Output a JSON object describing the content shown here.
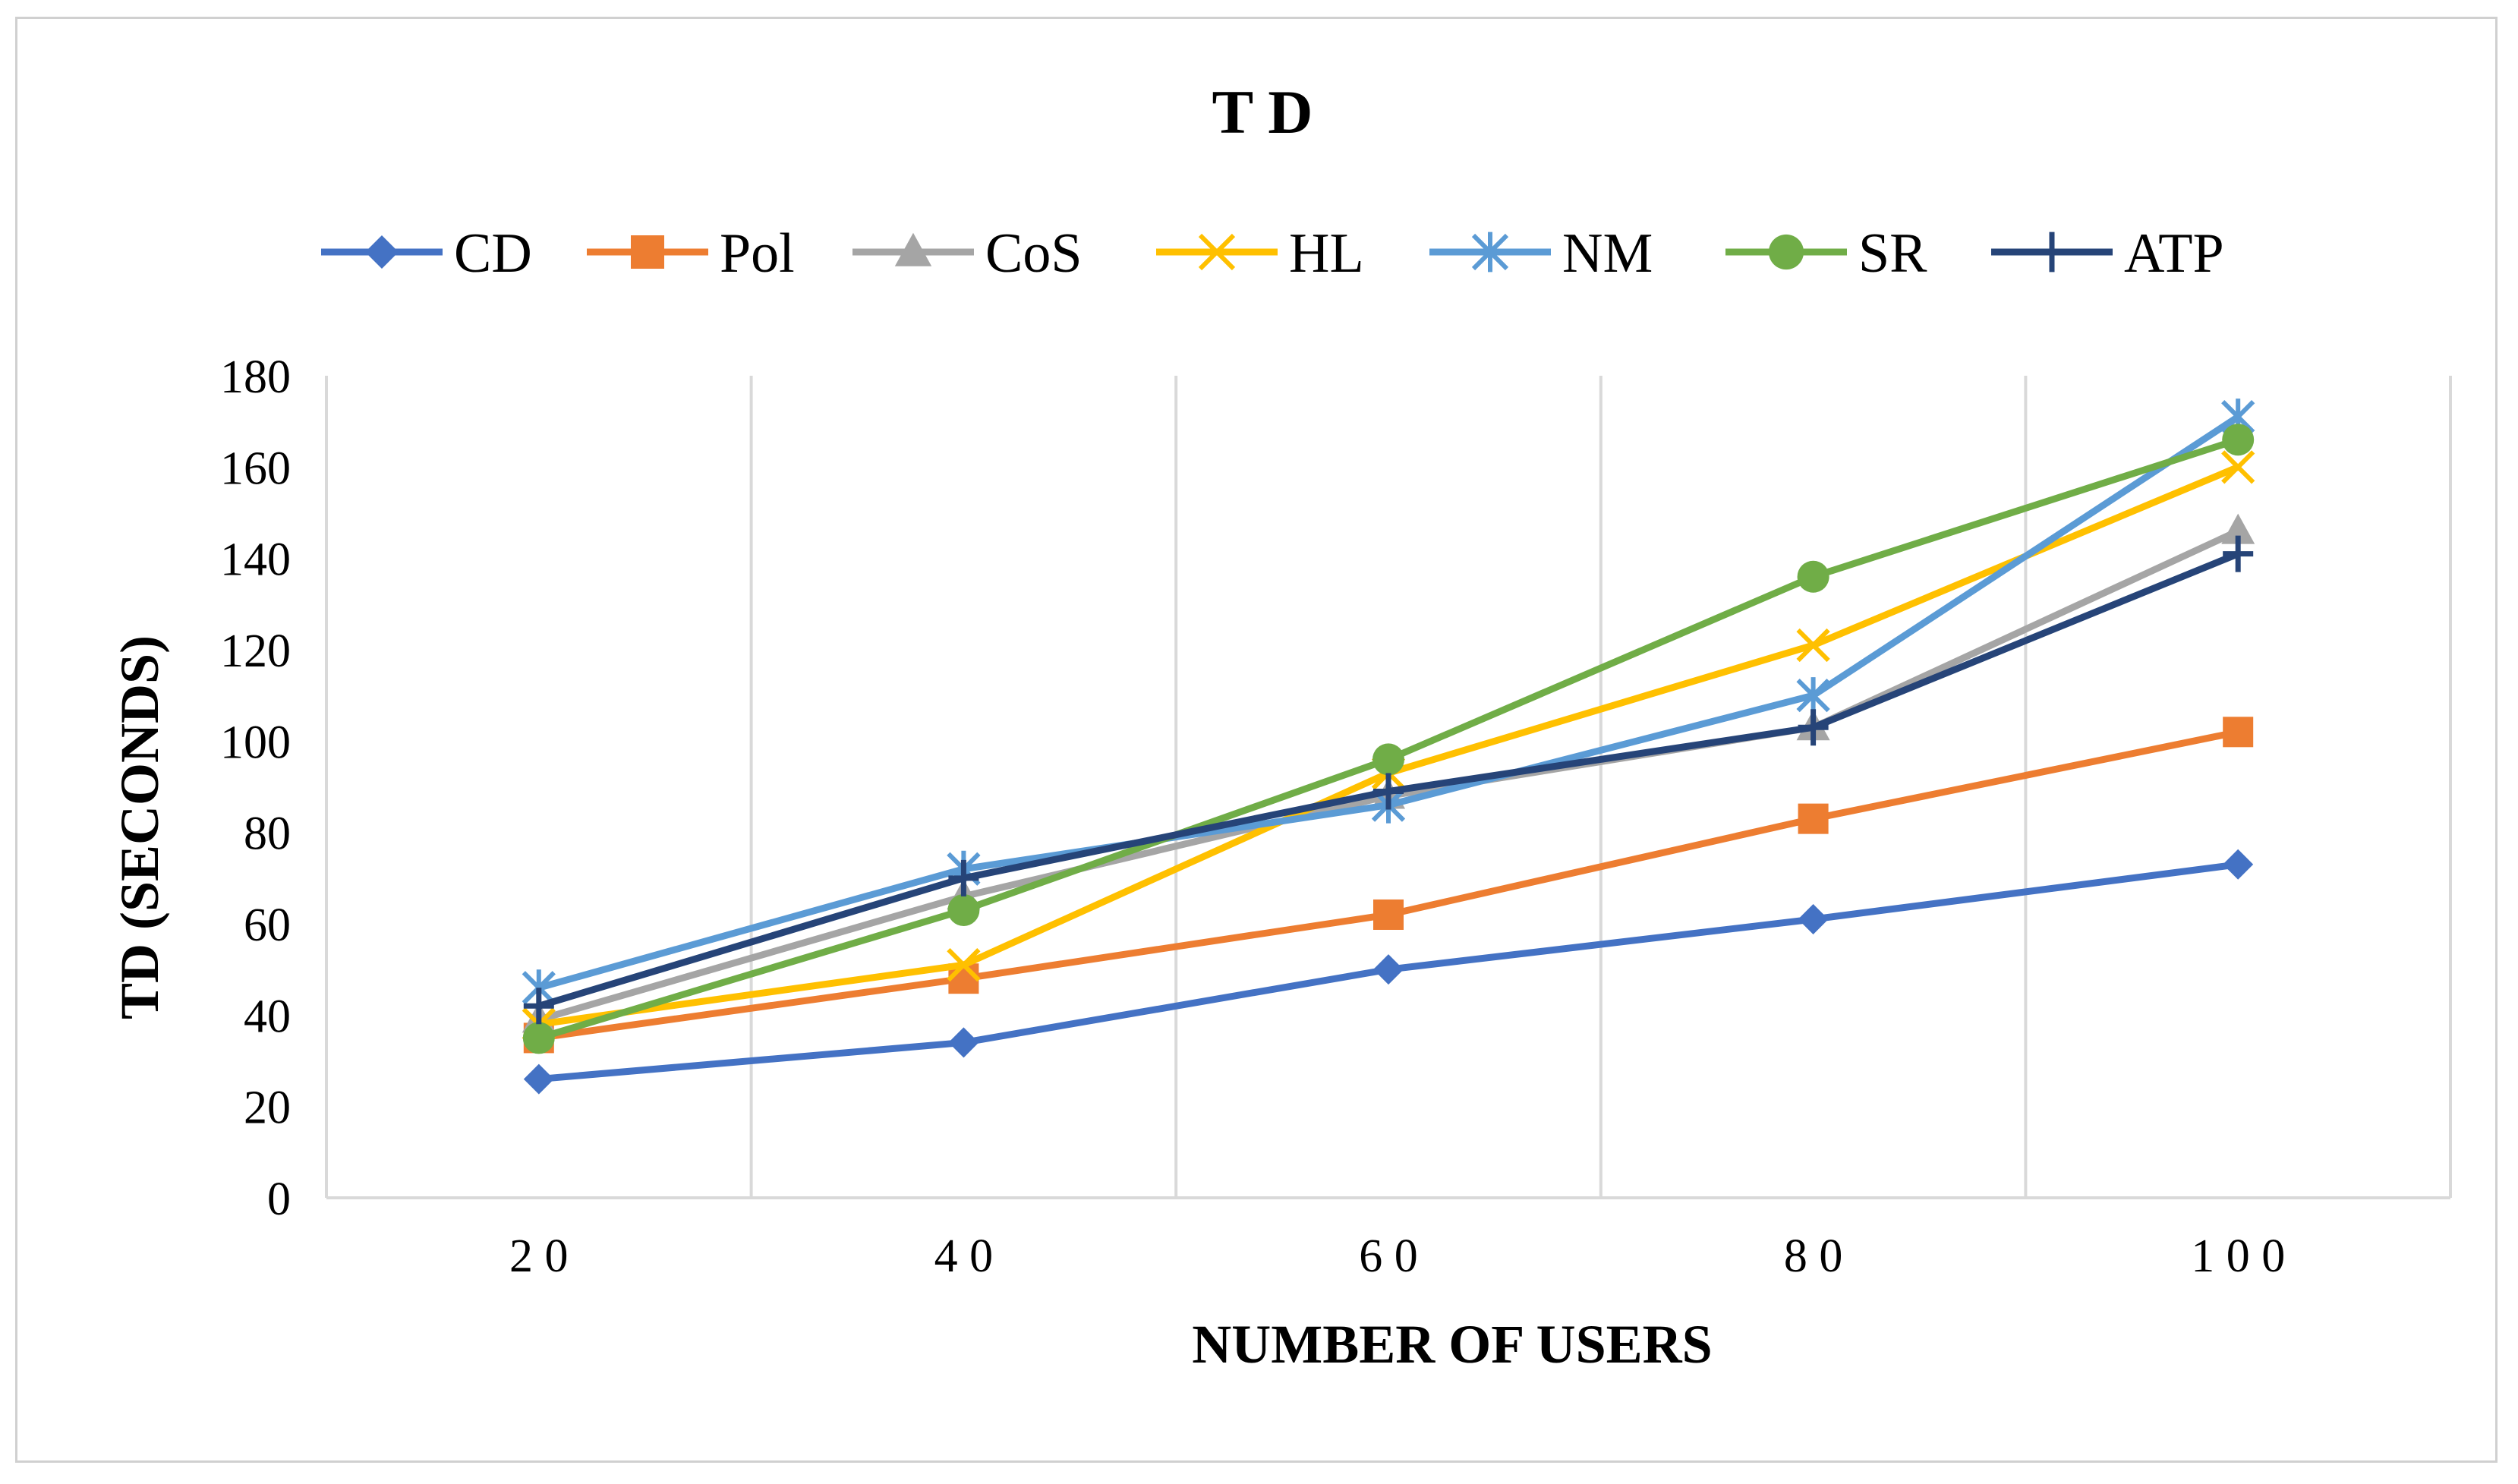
{
  "chart_data": {
    "type": "line",
    "title": "T D",
    "xlabel": "NUMBER OF USERS",
    "ylabel": "TD (SECONDS)",
    "x": [
      20,
      40,
      60,
      80,
      100
    ],
    "x_tick_labels": [
      "2 0",
      "4 0",
      "6 0",
      "8 0",
      "1 0 0"
    ],
    "xlim": [
      10,
      110
    ],
    "x_grid_values": [
      30,
      50,
      70,
      90
    ],
    "ylim": [
      0,
      180
    ],
    "y_ticks": [
      0,
      20,
      40,
      60,
      80,
      100,
      120,
      140,
      160,
      180
    ],
    "y_tick_labels": [
      "0",
      "20",
      "40",
      "60",
      "80",
      "100",
      "120",
      "140",
      "160",
      "180"
    ],
    "grid": "vertical",
    "legend_position": "top",
    "series": [
      {
        "name": "CD",
        "values": [
          26,
          34,
          50,
          61,
          73
        ],
        "color": "#4472C4",
        "marker": "diamond"
      },
      {
        "name": "Pol",
        "values": [
          35,
          48,
          62,
          83,
          102
        ],
        "color": "#ED7D31",
        "marker": "square"
      },
      {
        "name": "CoS",
        "values": [
          39,
          66,
          88,
          103,
          146
        ],
        "color": "#A5A5A5",
        "marker": "triangle"
      },
      {
        "name": "HL",
        "values": [
          38,
          51,
          93,
          121,
          160
        ],
        "color": "#FFC000",
        "marker": "x"
      },
      {
        "name": "NM",
        "values": [
          46,
          72,
          86,
          110,
          171
        ],
        "color": "#5B9BD5",
        "marker": "star"
      },
      {
        "name": "SR",
        "values": [
          35,
          63,
          96,
          136,
          166
        ],
        "color": "#70AD47",
        "marker": "circle"
      },
      {
        "name": "ATP",
        "values": [
          42,
          70,
          89,
          103,
          141
        ],
        "color": "#264478",
        "marker": "plus"
      }
    ]
  }
}
